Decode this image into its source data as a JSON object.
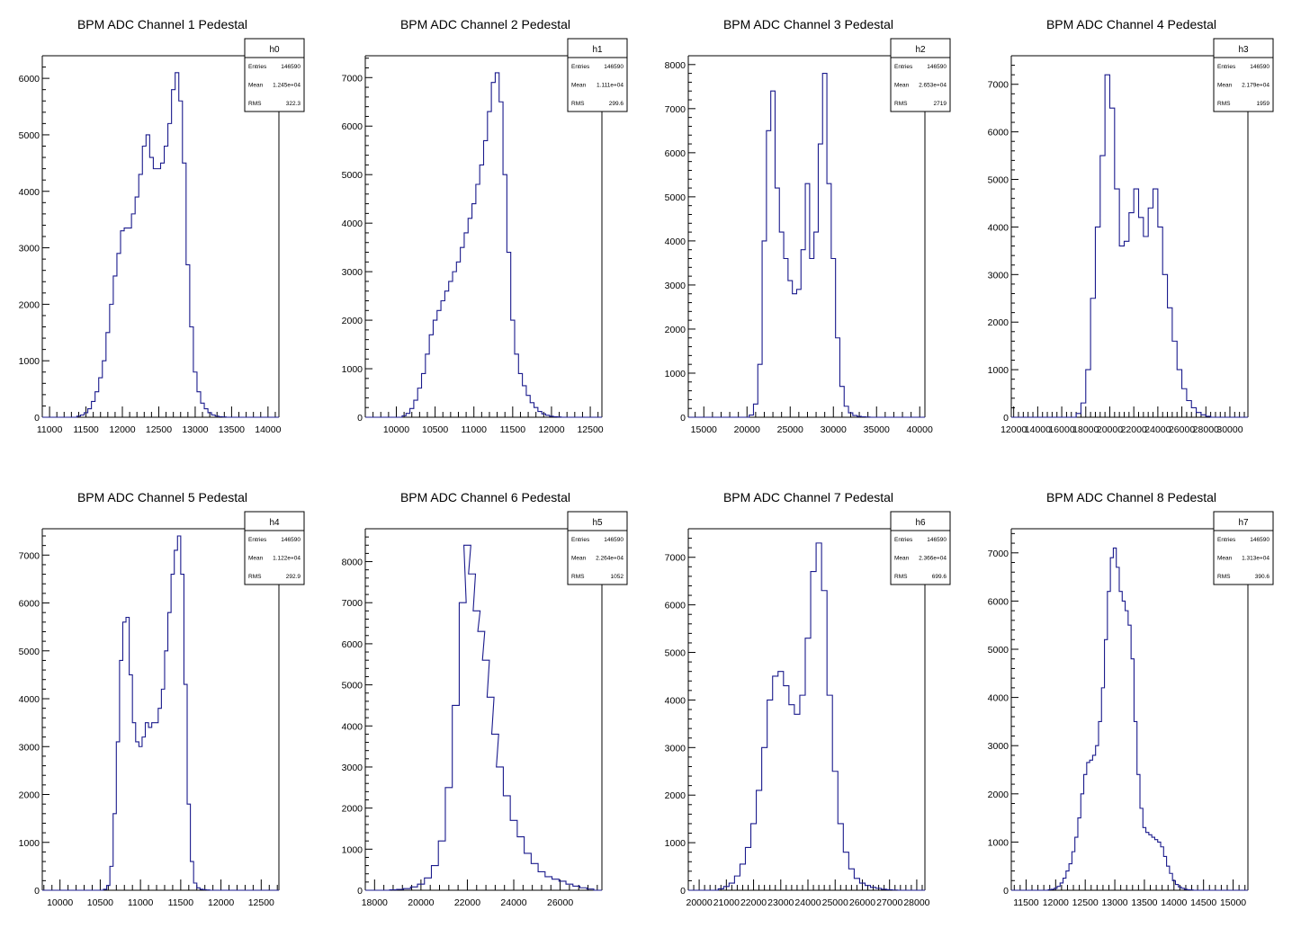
{
  "stats_labels": {
    "entries": "Entries",
    "mean": "Mean",
    "rms": "RMS"
  },
  "colors": {
    "line": "#1a1a8c",
    "frame": "#000000",
    "background": "#ffffff"
  },
  "chart_data": [
    {
      "type": "histogram-step",
      "title": "BPM ADC Channel 1 Pedestal",
      "stats": {
        "name": "h0",
        "entries": "146590",
        "mean": "1.245e+04",
        "rms": "322.3"
      },
      "xlim": [
        10900,
        14150
      ],
      "ylim": [
        0,
        6400
      ],
      "xticks": [
        11000,
        11500,
        12000,
        12500,
        13000,
        13500,
        14000
      ],
      "xticklabels": [
        "11000",
        "11500",
        "12000",
        "12500",
        "13000",
        "13500",
        "14000"
      ],
      "yticks": [
        0,
        1000,
        2000,
        3000,
        4000,
        5000,
        6000
      ],
      "yticklabels": [
        "0",
        "1000",
        "2000",
        "3000",
        "4000",
        "5000",
        "6000"
      ],
      "x": [
        11400,
        11450,
        11500,
        11550,
        11600,
        11650,
        11700,
        11750,
        11800,
        11850,
        11900,
        11950,
        12000,
        12050,
        12100,
        12150,
        12200,
        12250,
        12300,
        12350,
        12400,
        12450,
        12500,
        12550,
        12600,
        12650,
        12700,
        12750,
        12800,
        12850,
        12900,
        12950,
        13000,
        13050,
        13100,
        13150,
        13200,
        13250,
        13300,
        13350,
        13400
      ],
      "y": [
        20,
        40,
        80,
        150,
        280,
        450,
        700,
        1000,
        1500,
        2000,
        2500,
        2900,
        3300,
        3350,
        3350,
        3600,
        3900,
        4300,
        4800,
        5000,
        4600,
        4400,
        4400,
        4500,
        4800,
        5200,
        5800,
        6100,
        5600,
        4500,
        2700,
        1600,
        800,
        450,
        250,
        150,
        80,
        40,
        20,
        10,
        5
      ]
    },
    {
      "type": "histogram-step",
      "title": "BPM ADC Channel 2 Pedestal",
      "stats": {
        "name": "h1",
        "entries": "146590",
        "mean": "1.111e+04",
        "rms": "299.6"
      },
      "xlim": [
        9600,
        12650
      ],
      "ylim": [
        0,
        7450
      ],
      "xticks": [
        10000,
        10500,
        11000,
        11500,
        12000,
        12500
      ],
      "xticklabels": [
        "10000",
        "10500",
        "11000",
        "11500",
        "12000",
        "12500"
      ],
      "yticks": [
        0,
        1000,
        2000,
        3000,
        4000,
        5000,
        6000,
        7000
      ],
      "yticklabels": [
        "0",
        "1000",
        "2000",
        "3000",
        "4000",
        "5000",
        "6000",
        "7000"
      ],
      "x": [
        10100,
        10150,
        10200,
        10250,
        10300,
        10350,
        10400,
        10450,
        10500,
        10550,
        10600,
        10650,
        10700,
        10750,
        10800,
        10850,
        10900,
        10950,
        11000,
        11050,
        11100,
        11150,
        11200,
        11250,
        11300,
        11350,
        11400,
        11450,
        11500,
        11550,
        11600,
        11650,
        11700,
        11750,
        11800,
        11850,
        11900,
        11950,
        12000,
        12050,
        12100
      ],
      "y": [
        30,
        80,
        180,
        350,
        600,
        900,
        1300,
        1700,
        2000,
        2200,
        2400,
        2600,
        2800,
        3000,
        3200,
        3500,
        3800,
        4100,
        4400,
        4800,
        5200,
        5700,
        6300,
        6900,
        7100,
        6500,
        5000,
        3400,
        2000,
        1300,
        900,
        650,
        450,
        300,
        200,
        120,
        70,
        40,
        20,
        10,
        5
      ]
    },
    {
      "type": "histogram-step",
      "title": "BPM ADC Channel 3 Pedestal",
      "stats": {
        "name": "h2",
        "entries": "146590",
        "mean": "2.653e+04",
        "rms": "2719"
      },
      "xlim": [
        13200,
        40600
      ],
      "ylim": [
        0,
        8200
      ],
      "xticks": [
        15000,
        20000,
        25000,
        30000,
        35000,
        40000
      ],
      "xticklabels": [
        "15000",
        "20000",
        "25000",
        "30000",
        "35000",
        "40000"
      ],
      "yticks": [
        0,
        1000,
        2000,
        3000,
        4000,
        5000,
        6000,
        7000,
        8000
      ],
      "yticklabels": [
        "0",
        "1000",
        "2000",
        "3000",
        "4000",
        "5000",
        "6000",
        "7000",
        "8000"
      ],
      "x": [
        20500,
        21000,
        21500,
        22000,
        22500,
        23000,
        23500,
        24000,
        24500,
        25000,
        25500,
        26000,
        26500,
        27000,
        27500,
        28000,
        28500,
        29000,
        29500,
        30000,
        30500,
        31000,
        31500,
        32000,
        32500,
        33000,
        33500,
        34000
      ],
      "y": [
        50,
        300,
        1200,
        4000,
        6500,
        7400,
        5200,
        4200,
        3600,
        3100,
        2800,
        2900,
        3800,
        5300,
        3600,
        4200,
        6200,
        7800,
        5300,
        3600,
        1800,
        700,
        250,
        100,
        40,
        20,
        10,
        5
      ]
    },
    {
      "type": "histogram-step",
      "title": "BPM ADC Channel 4 Pedestal",
      "stats": {
        "name": "h3",
        "entries": "146590",
        "mean": "2.179e+04",
        "rms": "1959"
      },
      "xlim": [
        11800,
        31500
      ],
      "ylim": [
        0,
        7600
      ],
      "xticks": [
        12000,
        14000,
        16000,
        18000,
        20000,
        22000,
        24000,
        26000,
        28000,
        30000
      ],
      "xticklabels": [
        "12000",
        "14000",
        "16000",
        "18000",
        "20000",
        "22000",
        "24000",
        "26000",
        "28000",
        "30000"
      ],
      "yticks": [
        0,
        1000,
        2000,
        3000,
        4000,
        5000,
        6000,
        7000
      ],
      "yticklabels": [
        "0",
        "1000",
        "2000",
        "3000",
        "4000",
        "5000",
        "6000",
        "7000"
      ],
      "x": [
        17400,
        17800,
        18200,
        18600,
        19000,
        19400,
        19800,
        20200,
        20600,
        21000,
        21400,
        21800,
        22200,
        22600,
        23000,
        23400,
        23800,
        24200,
        24600,
        25000,
        25400,
        25800,
        26200,
        26600,
        27000,
        27400,
        27800,
        28200
      ],
      "y": [
        80,
        300,
        1000,
        2500,
        4000,
        5500,
        7200,
        6500,
        4800,
        3600,
        3700,
        4300,
        4800,
        4200,
        3800,
        4400,
        4800,
        4000,
        3000,
        2300,
        1600,
        1000,
        600,
        350,
        200,
        100,
        50,
        20
      ]
    },
    {
      "type": "histogram-step",
      "title": "BPM ADC Channel 5 Pedestal",
      "stats": {
        "name": "h4",
        "entries": "146590",
        "mean": "1.122e+04",
        "rms": "292.9"
      },
      "xlim": [
        9780,
        12720
      ],
      "ylim": [
        0,
        7550
      ],
      "xticks": [
        10000,
        10500,
        11000,
        11500,
        12000,
        12500
      ],
      "xticklabels": [
        "10000",
        "10500",
        "11000",
        "11500",
        "12000",
        "12500"
      ],
      "yticks": [
        0,
        1000,
        2000,
        3000,
        4000,
        5000,
        6000,
        7000
      ],
      "yticklabels": [
        "0",
        "1000",
        "2000",
        "3000",
        "4000",
        "5000",
        "6000",
        "7000"
      ],
      "x": [
        10560,
        10600,
        10640,
        10680,
        10720,
        10760,
        10800,
        10840,
        10880,
        10920,
        10960,
        11000,
        11040,
        11080,
        11120,
        11160,
        11200,
        11240,
        11280,
        11320,
        11360,
        11400,
        11440,
        11480,
        11520,
        11560,
        11600,
        11640,
        11680,
        11720,
        11760,
        11800,
        11840
      ],
      "y": [
        20,
        100,
        500,
        1600,
        3100,
        4800,
        5600,
        5700,
        4500,
        3500,
        3100,
        3000,
        3200,
        3500,
        3400,
        3500,
        3500,
        3800,
        4200,
        5000,
        5800,
        6600,
        7100,
        7400,
        6600,
        4300,
        1800,
        600,
        150,
        50,
        20,
        10,
        5
      ]
    },
    {
      "type": "histogram-step",
      "title": "BPM ADC Channel 6 Pedestal",
      "stats": {
        "name": "h5",
        "entries": "146590",
        "mean": "2.264e+04",
        "rms": "1052"
      },
      "xlim": [
        17600,
        27800
      ],
      "ylim": [
        0,
        8800
      ],
      "xticks": [
        18000,
        20000,
        22000,
        24000,
        26000
      ],
      "xticklabels": [
        "18000",
        "20000",
        "22000",
        "24000",
        "26000"
      ],
      "yticks": [
        0,
        1000,
        2000,
        3000,
        4000,
        5000,
        6000,
        7000,
        8000
      ],
      "yticklabels": [
        "0",
        "1000",
        "2000",
        "3000",
        "4000",
        "5000",
        "6000",
        "7000",
        "8000"
      ],
      "x": [
        18800,
        19100,
        19400,
        19700,
        20000,
        20300,
        20600,
        20900,
        21200,
        21500,
        21800,
        22000,
        22200,
        22400,
        22600,
        22800,
        23000,
        23200,
        23400,
        23700,
        24000,
        24300,
        24600,
        24900,
        25200,
        25500,
        25800,
        26100,
        26400,
        26700,
        27000,
        27300
      ],
      "y": [
        10,
        20,
        40,
        80,
        150,
        300,
        600,
        1200,
        2500,
        4500,
        7000,
        8400,
        7700,
        6800,
        6300,
        5600,
        4700,
        3800,
        3000,
        2300,
        1700,
        1300,
        900,
        650,
        450,
        330,
        270,
        220,
        150,
        100,
        60,
        30
      ]
    },
    {
      "type": "histogram-step",
      "title": "BPM ADC Channel 7 Pedestal",
      "stats": {
        "name": "h6",
        "entries": "146590",
        "mean": "2.366e+04",
        "rms": "699.6"
      },
      "xlim": [
        19600,
        28300
      ],
      "ylim": [
        0,
        7600
      ],
      "xticks": [
        20000,
        21000,
        22000,
        23000,
        24000,
        25000,
        26000,
        27000,
        28000
      ],
      "xticklabels": [
        "20000",
        "21000",
        "22000",
        "23000",
        "24000",
        "25000",
        "26000",
        "27000",
        "28000"
      ],
      "yticks": [
        0,
        1000,
        2000,
        3000,
        4000,
        5000,
        6000,
        7000
      ],
      "yticklabels": [
        "0",
        "1000",
        "2000",
        "3000",
        "4000",
        "5000",
        "6000",
        "7000"
      ],
      "x": [
        20800,
        21000,
        21200,
        21400,
        21600,
        21800,
        22000,
        22200,
        22400,
        22600,
        22800,
        23000,
        23200,
        23400,
        23600,
        23800,
        24000,
        24200,
        24400,
        24600,
        24800,
        25000,
        25200,
        25400,
        25600,
        25800,
        26000,
        26200,
        26400,
        26600,
        26800,
        27000,
        27200
      ],
      "y": [
        30,
        80,
        150,
        300,
        550,
        900,
        1400,
        2100,
        3000,
        4000,
        4500,
        4600,
        4300,
        3900,
        3700,
        4100,
        5300,
        6700,
        7300,
        6300,
        4100,
        2500,
        1400,
        800,
        450,
        250,
        150,
        100,
        60,
        40,
        20,
        10,
        5
      ]
    },
    {
      "type": "histogram-step",
      "title": "BPM ADC Channel 8 Pedestal",
      "stats": {
        "name": "h7",
        "entries": "146590",
        "mean": "1.313e+04",
        "rms": "390.6"
      },
      "xlim": [
        11250,
        15250
      ],
      "ylim": [
        0,
        7500
      ],
      "xticks": [
        11500,
        12000,
        12500,
        13000,
        13500,
        14000,
        14500,
        15000
      ],
      "xticklabels": [
        "11500",
        "12000",
        "12500",
        "13000",
        "13500",
        "14000",
        "14500",
        "15000"
      ],
      "yticks": [
        0,
        1000,
        2000,
        3000,
        4000,
        5000,
        6000,
        7000
      ],
      "yticklabels": [
        "0",
        "1000",
        "2000",
        "3000",
        "4000",
        "5000",
        "6000",
        "7000"
      ],
      "x": [
        11900,
        11950,
        12000,
        12050,
        12100,
        12150,
        12200,
        12250,
        12300,
        12350,
        12400,
        12450,
        12500,
        12550,
        12600,
        12650,
        12700,
        12750,
        12800,
        12850,
        12900,
        12950,
        13000,
        13050,
        13100,
        13150,
        13200,
        13250,
        13300,
        13350,
        13400,
        13450,
        13500,
        13550,
        13600,
        13650,
        13700,
        13750,
        13800,
        13850,
        13900,
        13950,
        14000,
        14050,
        14100,
        14150,
        14200,
        14250,
        14300
      ],
      "y": [
        10,
        20,
        40,
        80,
        150,
        250,
        400,
        550,
        800,
        1100,
        1500,
        2000,
        2400,
        2650,
        2700,
        2800,
        3000,
        3500,
        4200,
        5200,
        6200,
        6900,
        7100,
        6700,
        6200,
        6000,
        5800,
        5500,
        4800,
        3500,
        2400,
        1700,
        1300,
        1200,
        1150,
        1100,
        1050,
        1000,
        900,
        700,
        500,
        350,
        200,
        120,
        70,
        40,
        20,
        10,
        5
      ]
    }
  ]
}
